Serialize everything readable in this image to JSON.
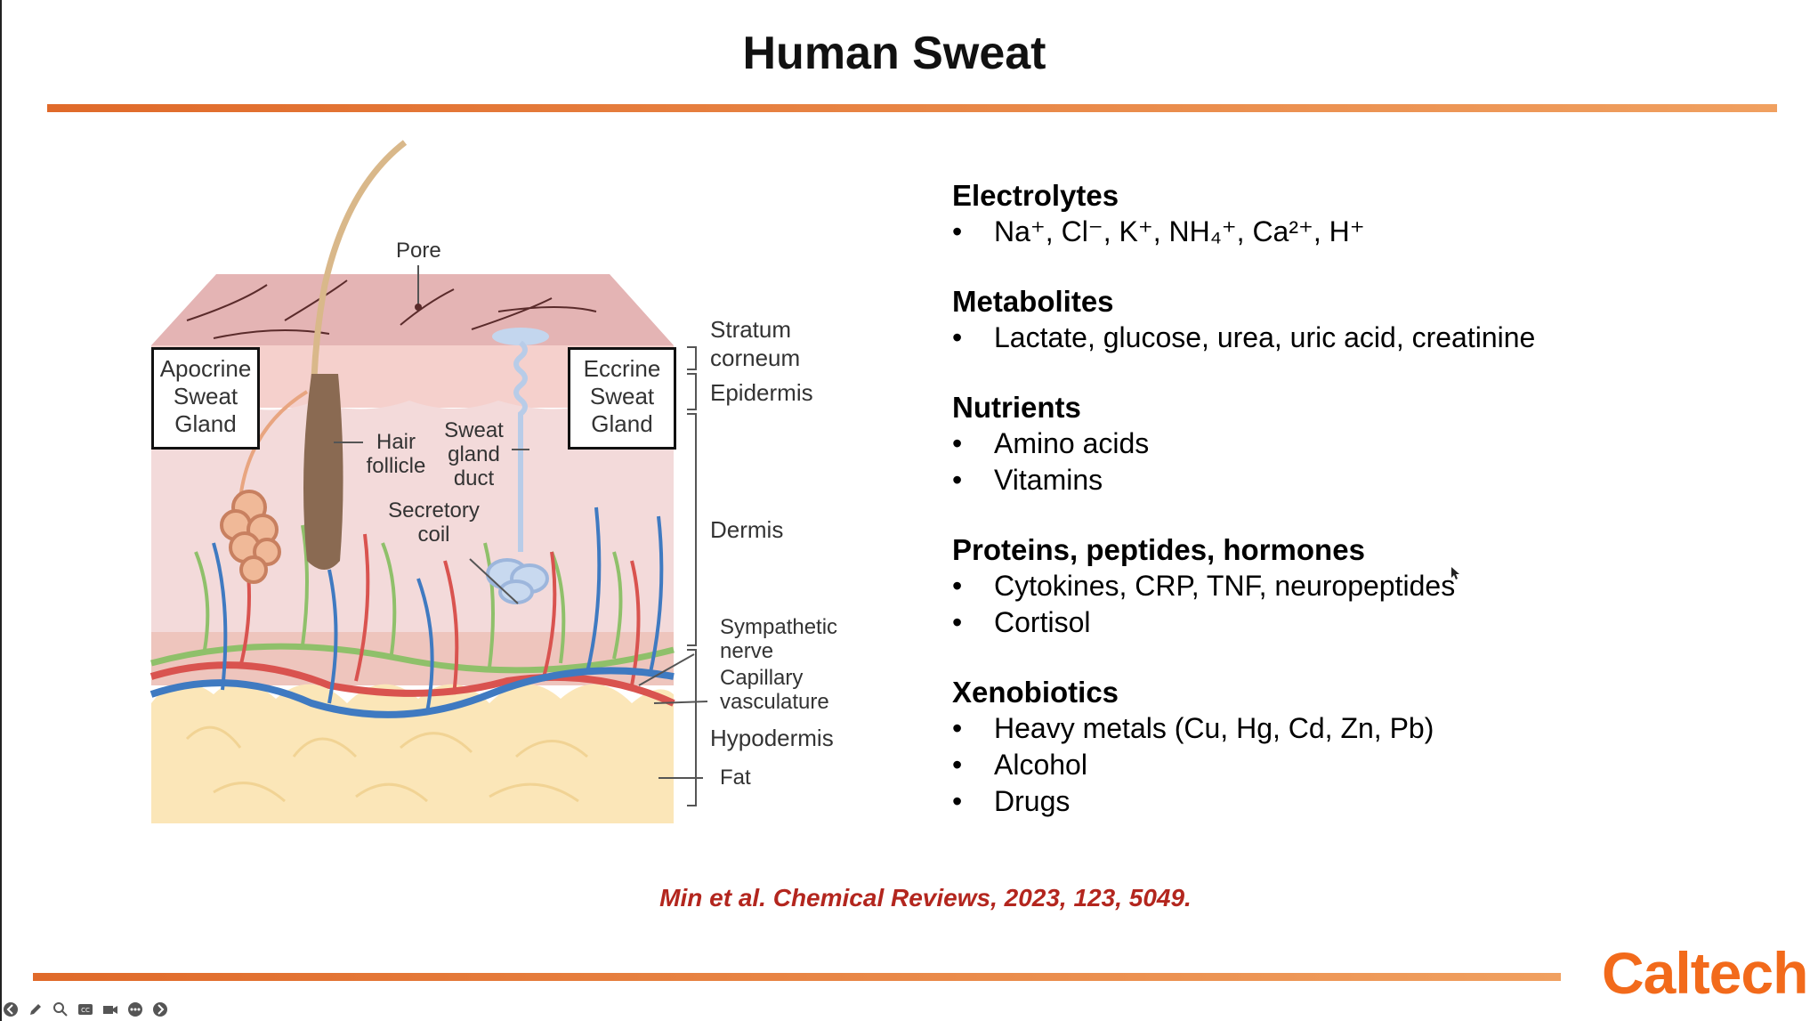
{
  "slide": {
    "title": "Human Sweat",
    "citation": "Min et al. Chemical Reviews, 2023, 123, 5049.",
    "logo": "Caltech",
    "accent_color": "#e8742f",
    "citation_color": "#b3261e"
  },
  "diagram": {
    "labels": {
      "pore": "Pore",
      "apocrine": "Apocrine Sweat Gland",
      "eccrine": "Eccrine Sweat Gland",
      "stratum": "Stratum corneum",
      "epidermis": "Epidermis",
      "hair_follicle": "Hair follicle",
      "sweat_duct": "Sweat gland duct",
      "secretory_coil": "Secretory coil",
      "dermis": "Dermis",
      "sympathetic_nerve": "Sympathetic nerve",
      "capillary": "Capillary vasculature",
      "hypodermis": "Hypodermis",
      "fat": "Fat"
    }
  },
  "components": [
    {
      "heading": "Electrolytes",
      "items": [
        "Na⁺, Cl⁻, K⁺, NH₄⁺, Ca²⁺, H⁺"
      ]
    },
    {
      "heading": "Metabolites",
      "items": [
        "Lactate, glucose, urea, uric acid, creatinine"
      ]
    },
    {
      "heading": "Nutrients",
      "items": [
        "Amino acids",
        "Vitamins"
      ]
    },
    {
      "heading": "Proteins, peptides, hormones",
      "items": [
        "Cytokines, CRP, TNF, neuropeptides",
        "Cortisol"
      ]
    },
    {
      "heading": "Xenobiotics",
      "items": [
        "Heavy metals (Cu, Hg, Cd, Zn, Pb)",
        "Alcohol",
        "Drugs"
      ]
    }
  ],
  "toolbar": {
    "icons": [
      "back-icon",
      "pen-icon",
      "zoom-icon",
      "captions-icon",
      "camera-icon",
      "more-icon",
      "forward-icon"
    ]
  }
}
